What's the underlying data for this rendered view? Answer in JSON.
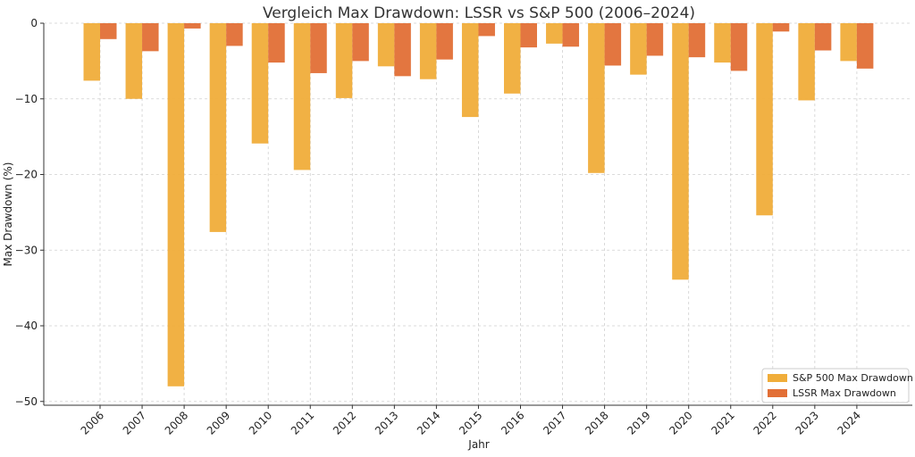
{
  "chart_data": {
    "type": "bar",
    "title": "Vergleich Max Drawdown: LSSR vs S&P 500 (2006–2024)",
    "xlabel": "Jahr",
    "ylabel": "Max Drawdown (%)",
    "ylim": [
      -50.5,
      0
    ],
    "yticks": [
      0,
      -10,
      -20,
      -30,
      -40,
      -50
    ],
    "ytick_labels": [
      "0",
      "−10",
      "−20",
      "−30",
      "−40",
      "−50"
    ],
    "grid": true,
    "legend_position": "lower-right",
    "categories": [
      "2006",
      "2007",
      "2008",
      "2009",
      "2010",
      "2011",
      "2012",
      "2013",
      "2014",
      "2015",
      "2016",
      "2017",
      "2018",
      "2019",
      "2020",
      "2021",
      "2022",
      "2023",
      "2024"
    ],
    "series": [
      {
        "name": "S&P 500 Max Drawdown",
        "color": "#f0ad3a",
        "values": [
          -7.6,
          -10.0,
          -48.0,
          -27.6,
          -15.9,
          -19.4,
          -9.9,
          -5.7,
          -7.4,
          -12.4,
          -9.3,
          -2.7,
          -19.8,
          -6.8,
          -33.9,
          -5.2,
          -25.4,
          -10.2,
          -5.0
        ]
      },
      {
        "name": "LSSR Max Drawdown",
        "color": "#e26f36",
        "values": [
          -2.1,
          -3.7,
          -0.7,
          -3.0,
          -5.2,
          -6.6,
          -5.0,
          -7.0,
          -4.8,
          -1.7,
          -3.2,
          -3.1,
          -5.6,
          -4.3,
          -4.5,
          -6.3,
          -1.1,
          -3.6,
          -6.0
        ]
      }
    ]
  }
}
